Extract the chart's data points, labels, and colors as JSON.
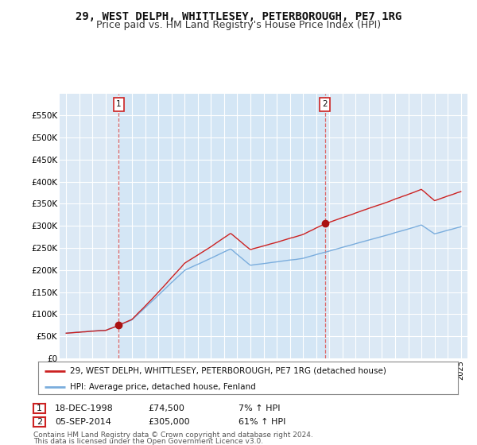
{
  "title": "29, WEST DELPH, WHITTLESEY, PETERBOROUGH, PE7 1RG",
  "subtitle": "Price paid vs. HM Land Registry's House Price Index (HPI)",
  "title_fontsize": 10,
  "subtitle_fontsize": 9,
  "background_color": "#ffffff",
  "plot_bg_color": "#dce9f5",
  "grid_color": "#ffffff",
  "ylim": [
    0,
    600000
  ],
  "yticks": [
    0,
    50000,
    100000,
    150000,
    200000,
    250000,
    300000,
    350000,
    400000,
    450000,
    500000,
    550000
  ],
  "ytick_labels": [
    "£0",
    "£50K",
    "£100K",
    "£150K",
    "£200K",
    "£250K",
    "£300K",
    "£350K",
    "£400K",
    "£450K",
    "£500K",
    "£550K"
  ],
  "sale1_date": "18-DEC-1998",
  "sale1_price": 74500,
  "sale1_year": 1999.0,
  "sale1_hpi_pct": "7%",
  "sale2_date": "05-SEP-2014",
  "sale2_price": 305000,
  "sale2_year": 2014.67,
  "sale2_hpi_pct": "61%",
  "legend_line1": "29, WEST DELPH, WHITTLESEY, PETERBOROUGH, PE7 1RG (detached house)",
  "legend_line2": "HPI: Average price, detached house, Fenland",
  "footer1": "Contains HM Land Registry data © Crown copyright and database right 2024.",
  "footer2": "This data is licensed under the Open Government Licence v3.0.",
  "line_color_red": "#cc2222",
  "line_color_blue": "#7aaddd",
  "marker_color": "#aa1111",
  "annotation_box_color": "#cc2222",
  "dashed_line_color": "#dd6666",
  "shade_color": "#d0e4f5"
}
